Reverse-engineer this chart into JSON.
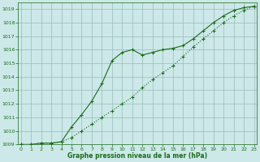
{
  "xlabel": "Graphe pression niveau de la mer (hPa)",
  "bg_color": "#cce8e8",
  "line_color": "#1a6b1a",
  "grid_color": "#99bbbb",
  "ylim": [
    1009,
    1019.5
  ],
  "xlim": [
    -0.3,
    23.3
  ],
  "yticks": [
    1009,
    1010,
    1011,
    1012,
    1013,
    1014,
    1015,
    1016,
    1017,
    1018,
    1019
  ],
  "xticks": [
    0,
    1,
    2,
    3,
    4,
    5,
    6,
    7,
    8,
    9,
    10,
    11,
    12,
    13,
    14,
    15,
    16,
    17,
    18,
    19,
    20,
    21,
    22,
    23
  ],
  "series1_x": [
    0,
    1,
    2,
    3,
    4,
    5,
    6,
    7,
    8,
    9,
    10,
    11,
    12,
    13,
    14,
    15,
    16,
    17,
    18,
    19,
    20,
    21,
    22,
    23
  ],
  "series1_y": [
    1009.0,
    1009.0,
    1009.1,
    1009.1,
    1009.2,
    1010.3,
    1011.2,
    1012.2,
    1013.5,
    1015.2,
    1015.8,
    1016.0,
    1015.6,
    1015.8,
    1016.0,
    1016.1,
    1016.3,
    1016.8,
    1017.4,
    1018.0,
    1018.5,
    1018.9,
    1019.1,
    1019.2
  ],
  "series2_x": [
    0,
    1,
    2,
    3,
    4,
    5,
    6,
    7,
    8,
    9,
    10,
    11,
    12,
    13,
    14,
    15,
    16,
    17,
    18,
    19,
    20,
    21,
    22,
    23
  ],
  "series2_y": [
    1009.0,
    1009.0,
    1009.1,
    1009.1,
    1009.2,
    1009.5,
    1010.0,
    1010.5,
    1011.0,
    1011.5,
    1012.0,
    1012.5,
    1013.2,
    1013.8,
    1014.3,
    1014.8,
    1015.5,
    1016.2,
    1016.8,
    1017.4,
    1018.0,
    1018.5,
    1018.9,
    1019.2
  ]
}
